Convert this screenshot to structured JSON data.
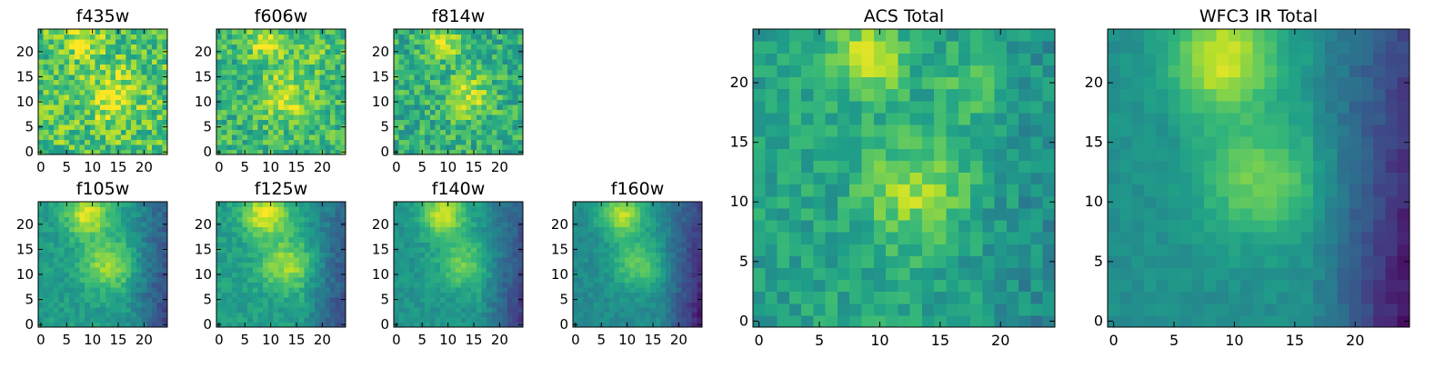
{
  "chart_data": [
    {
      "type": "heatmap",
      "title": "f435w",
      "x_ticks": [
        0,
        5,
        10,
        15,
        20
      ],
      "y_ticks": [
        0,
        5,
        10,
        15,
        20
      ],
      "grid": [
        25,
        25
      ],
      "peaks": [
        [
          14,
          11,
          0.25,
          3.5
        ],
        [
          8,
          22,
          0.22,
          2.5
        ]
      ],
      "base": 0.72,
      "noise": 0.2
    },
    {
      "type": "heatmap",
      "title": "f606w",
      "x_ticks": [
        0,
        5,
        10,
        15,
        20
      ],
      "y_ticks": [
        0,
        5,
        10,
        15,
        20
      ],
      "grid": [
        25,
        25
      ],
      "peaks": [
        [
          9,
          22,
          0.3,
          2.5
        ],
        [
          13,
          11,
          0.28,
          3.5
        ],
        [
          18,
          20,
          0.15,
          2.5
        ]
      ],
      "base": 0.66,
      "noise": 0.17
    },
    {
      "type": "heatmap",
      "title": "f814w",
      "x_ticks": [
        0,
        5,
        10,
        15,
        20
      ],
      "y_ticks": [
        0,
        5,
        10,
        15,
        20
      ],
      "grid": [
        25,
        25
      ],
      "peaks": [
        [
          9,
          22,
          0.3,
          2.5
        ],
        [
          14,
          11,
          0.28,
          3.0
        ]
      ],
      "base": 0.63,
      "noise": 0.17
    },
    {
      "type": "heatmap",
      "title": "f105w",
      "x_ticks": [
        0,
        5,
        10,
        15,
        20
      ],
      "y_ticks": [
        0,
        5,
        10,
        15,
        20
      ],
      "grid": [
        25,
        25
      ],
      "peaks": [
        [
          9,
          22,
          0.4,
          3.0
        ],
        [
          13,
          12,
          0.3,
          3.5
        ]
      ],
      "base": 0.55,
      "noise": 0.07,
      "right_dark": 0.35
    },
    {
      "type": "heatmap",
      "title": "f125w",
      "x_ticks": [
        0,
        5,
        10,
        15,
        20
      ],
      "y_ticks": [
        0,
        5,
        10,
        15,
        20
      ],
      "grid": [
        25,
        25
      ],
      "peaks": [
        [
          9,
          22,
          0.42,
          3.0
        ],
        [
          13,
          12,
          0.3,
          3.5
        ]
      ],
      "base": 0.56,
      "noise": 0.07,
      "right_dark": 0.35
    },
    {
      "type": "heatmap",
      "title": "f140w",
      "x_ticks": [
        0,
        5,
        10,
        15,
        20
      ],
      "y_ticks": [
        0,
        5,
        10,
        15,
        20
      ],
      "grid": [
        25,
        25
      ],
      "peaks": [
        [
          9,
          22,
          0.4,
          3.0
        ],
        [
          13,
          12,
          0.25,
          3.5
        ]
      ],
      "base": 0.52,
      "noise": 0.06,
      "right_dark": 0.35
    },
    {
      "type": "heatmap",
      "title": "f160w",
      "x_ticks": [
        0,
        5,
        10,
        15,
        20
      ],
      "y_ticks": [
        0,
        5,
        10,
        15,
        20
      ],
      "grid": [
        25,
        25
      ],
      "peaks": [
        [
          9,
          22,
          0.42,
          3.0
        ],
        [
          12,
          12,
          0.27,
          3.5
        ]
      ],
      "base": 0.48,
      "noise": 0.05,
      "right_dark": 0.42
    },
    {
      "type": "heatmap",
      "title": "ACS Total",
      "x_ticks": [
        0,
        5,
        10,
        15,
        20
      ],
      "y_ticks": [
        0,
        5,
        10,
        15,
        20
      ],
      "grid": [
        25,
        25
      ],
      "peaks": [
        [
          9,
          22,
          0.32,
          2.2
        ],
        [
          13,
          11,
          0.28,
          3.0
        ],
        [
          18,
          20,
          0.15,
          2.0
        ]
      ],
      "base": 0.58,
      "noise": 0.11,
      "right_dark": 0.12
    },
    {
      "type": "heatmap",
      "title": "WFC3 IR Total",
      "x_ticks": [
        0,
        5,
        10,
        15,
        20
      ],
      "y_ticks": [
        0,
        5,
        10,
        15,
        20
      ],
      "grid": [
        25,
        25
      ],
      "peaks": [
        [
          9,
          22,
          0.45,
          3.0
        ],
        [
          12,
          12,
          0.28,
          3.5
        ]
      ],
      "base": 0.5,
      "noise": 0.04,
      "right_dark": 0.45
    }
  ]
}
